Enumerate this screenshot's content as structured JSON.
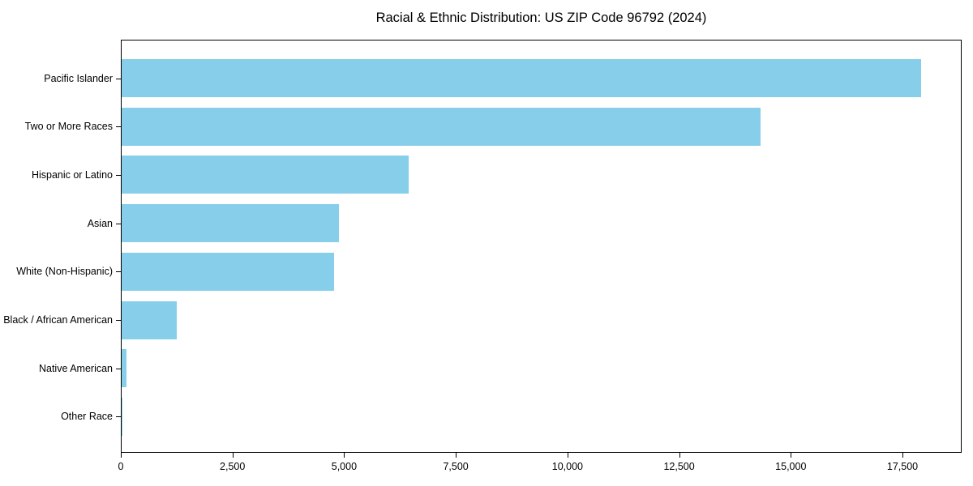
{
  "chart_data": {
    "type": "bar",
    "orientation": "horizontal",
    "title": "Racial & Ethnic Distribution: US ZIP Code 96792 (2024)",
    "xlabel": "",
    "ylabel": "",
    "categories": [
      "Pacific Islander",
      "Two or More Races",
      "Hispanic or Latino",
      "Asian",
      "White (Non-Hispanic)",
      "Black / African American",
      "Native American",
      "Other Race"
    ],
    "values": [
      17900,
      14300,
      6430,
      4870,
      4750,
      1230,
      110,
      15
    ],
    "xlim": [
      0,
      18825
    ],
    "x_ticks": [
      {
        "value": 0,
        "label": "0"
      },
      {
        "value": 2500,
        "label": "2,500"
      },
      {
        "value": 5000,
        "label": "5,000"
      },
      {
        "value": 7500,
        "label": "7,500"
      },
      {
        "value": 10000,
        "label": "10,000"
      },
      {
        "value": 12500,
        "label": "12,500"
      },
      {
        "value": 15000,
        "label": "15,000"
      },
      {
        "value": 17500,
        "label": "17,500"
      }
    ],
    "bar_color": "#87CEEB",
    "spine_color": "#000000",
    "background_color": "#FFFFFF",
    "grid": false,
    "legend": null
  }
}
